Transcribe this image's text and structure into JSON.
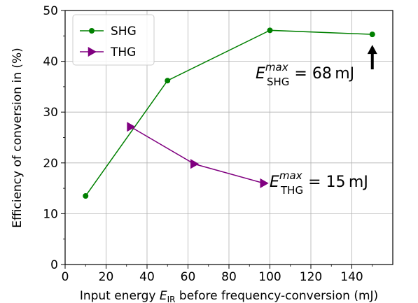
{
  "chart_data": {
    "type": "line",
    "xlabel_prefix": "Input energy ",
    "xlabel_symbol": "E",
    "xlabel_symbol_sub": "IR",
    "xlabel_suffix": " before frequency-conversion (mJ)",
    "ylabel": "Efficiency of conversion in (%)",
    "xlim": [
      0,
      160
    ],
    "ylim": [
      0,
      50
    ],
    "xticks": [
      0,
      20,
      40,
      60,
      80,
      100,
      120,
      140
    ],
    "yticks": [
      0,
      10,
      20,
      30,
      40,
      50
    ],
    "grid": true,
    "legend_position": "top-left",
    "series": [
      {
        "name": "SHG",
        "color": "#008000",
        "marker": "circle",
        "x": [
          10,
          50,
          100,
          150
        ],
        "y": [
          13.5,
          36.2,
          46.1,
          45.3
        ]
      },
      {
        "name": "THG",
        "color": "#800080",
        "marker": "triangle-right",
        "x": [
          32,
          63,
          97
        ],
        "y": [
          27.1,
          19.8,
          16.0
        ]
      }
    ],
    "annotations": [
      {
        "id": "shg",
        "symbol": "E",
        "sup": "max",
        "sub": "SHG",
        "text": " = 68 mJ",
        "x": 150,
        "y": 45.3,
        "arrow": "up"
      },
      {
        "id": "thg",
        "symbol": "E",
        "sup": "max",
        "sub": "THG",
        "text": " = 15 mJ",
        "x": 97,
        "y": 16.0
      }
    ]
  }
}
